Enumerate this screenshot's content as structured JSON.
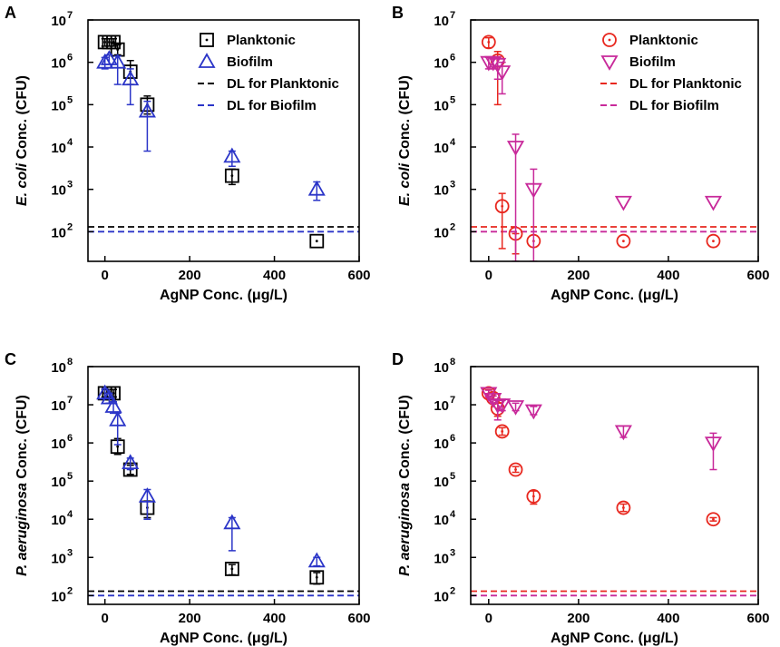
{
  "chart_data": [
    {
      "panel": "A",
      "type": "scatter",
      "xlabel": "AgNP Conc. (μg/L)",
      "ylabel_prefix": "E. coli",
      "ylabel_suffix": " Conc. (CFU)",
      "xlim": [
        -40,
        600
      ],
      "ylog_range": [
        1.3,
        7
      ],
      "yscale": "log",
      "xticks": [
        "0",
        "200",
        "400",
        "600"
      ],
      "legend_position": "top-right",
      "series": [
        {
          "name": "Planktonic",
          "marker": "square",
          "color": "#000000",
          "points": [
            {
              "x": 0,
              "y": 3000000,
              "lo": 2400000,
              "hi": 3600000
            },
            {
              "x": 10,
              "y": 3000000,
              "lo": 2400000,
              "hi": 3600000
            },
            {
              "x": 20,
              "y": 3000000,
              "lo": 2400000,
              "hi": 3600000
            },
            {
              "x": 30,
              "y": 2000000,
              "lo": 1500000,
              "hi": 2600000
            },
            {
              "x": 60,
              "y": 600000,
              "lo": 300000,
              "hi": 1100000
            },
            {
              "x": 100,
              "y": 100000,
              "lo": 60000,
              "hi": 160000
            },
            {
              "x": 300,
              "y": 2100,
              "lo": 1300,
              "hi": 3000
            },
            {
              "x": 500,
              "y": 60,
              "lo": 60,
              "hi": 60
            }
          ]
        },
        {
          "name": "Biofilm",
          "marker": "triangle-up",
          "color": "#2b35c8",
          "points": [
            {
              "x": 0,
              "y": 1000000,
              "lo": 700000,
              "hi": 1300000
            },
            {
              "x": 10,
              "y": 1200000,
              "lo": 900000,
              "hi": 1500000
            },
            {
              "x": 30,
              "y": 1000000,
              "lo": 300000,
              "hi": 1400000
            },
            {
              "x": 60,
              "y": 400000,
              "lo": 100000,
              "hi": 700000
            },
            {
              "x": 100,
              "y": 70000,
              "lo": 8000,
              "hi": 120000
            },
            {
              "x": 300,
              "y": 6000,
              "lo": 3500,
              "hi": 8000
            },
            {
              "x": 500,
              "y": 1000,
              "lo": 550,
              "hi": 1500
            }
          ]
        },
        {
          "name": "DL for Planktonic",
          "kind": "hline",
          "y": 130,
          "color": "#000000"
        },
        {
          "name": "DL for Biofilm",
          "kind": "hline",
          "y": 100,
          "color": "#2b35c8"
        }
      ]
    },
    {
      "panel": "B",
      "type": "scatter",
      "xlabel": "AgNP Conc. (μg/L)",
      "ylabel_prefix": "E. coli",
      "ylabel_suffix": " Conc. (CFU)",
      "xlim": [
        -40,
        600
      ],
      "ylog_range": [
        1.3,
        7
      ],
      "yscale": "log",
      "xticks": [
        "0",
        "200",
        "400",
        "600"
      ],
      "legend_position": "top-right",
      "series": [
        {
          "name": "Planktonic",
          "marker": "circle",
          "color": "#e8271e",
          "points": [
            {
              "x": 0,
              "y": 3000000,
              "lo": 2200000,
              "hi": 3800000
            },
            {
              "x": 20,
              "y": 1100000,
              "lo": 100000,
              "hi": 1800000
            },
            {
              "x": 30,
              "y": 400,
              "lo": 40,
              "hi": 800
            },
            {
              "x": 60,
              "y": 90,
              "lo": 30,
              "hi": 90
            },
            {
              "x": 100,
              "y": 60,
              "lo": 60,
              "hi": 60
            },
            {
              "x": 300,
              "y": 60,
              "lo": 60,
              "hi": 60
            },
            {
              "x": 500,
              "y": 60,
              "lo": 60,
              "hi": 60
            }
          ]
        },
        {
          "name": "Biofilm",
          "marker": "triangle-down",
          "color": "#c8299a",
          "points": [
            {
              "x": 0,
              "y": 1000000,
              "lo": 700000,
              "hi": 1300000
            },
            {
              "x": 10,
              "y": 1000000,
              "lo": 700000,
              "hi": 1300000
            },
            {
              "x": 20,
              "y": 900000,
              "lo": 400000,
              "hi": 1300000
            },
            {
              "x": 30,
              "y": 600000,
              "lo": 180000,
              "hi": 1000000
            },
            {
              "x": 60,
              "y": 10000,
              "lo": 20,
              "hi": 20000
            },
            {
              "x": 100,
              "y": 1000,
              "lo": 20,
              "hi": 3000
            },
            {
              "x": 300,
              "y": 500,
              "lo": 500,
              "hi": 500
            },
            {
              "x": 500,
              "y": 500,
              "lo": 500,
              "hi": 500
            }
          ]
        },
        {
          "name": "DL for Planktonic",
          "kind": "hline",
          "y": 130,
          "color": "#e8271e"
        },
        {
          "name": "DL for Biofilm",
          "kind": "hline",
          "y": 100,
          "color": "#c8299a"
        }
      ]
    },
    {
      "panel": "C",
      "type": "scatter",
      "xlabel": "AgNP Conc. (μg/L)",
      "ylabel_prefix": "P. aeruginosa",
      "ylabel_suffix": " Conc. (CFU)",
      "xlim": [
        -40,
        600
      ],
      "ylog_range": [
        1.77,
        8
      ],
      "yscale": "log",
      "xticks": [
        "0",
        "200",
        "400",
        "600"
      ],
      "series": [
        {
          "name": "Planktonic",
          "marker": "square",
          "color": "#000000",
          "points": [
            {
              "x": 0,
              "y": 20000000,
              "lo": 16000000,
              "hi": 25000000
            },
            {
              "x": 10,
              "y": 20000000,
              "lo": 16000000,
              "hi": 25000000
            },
            {
              "x": 20,
              "y": 20000000,
              "lo": 16000000,
              "hi": 25000000
            },
            {
              "x": 30,
              "y": 800000,
              "lo": 500000,
              "hi": 1300000
            },
            {
              "x": 60,
              "y": 200000,
              "lo": 150000,
              "hi": 260000
            },
            {
              "x": 100,
              "y": 20000,
              "lo": 11000,
              "hi": 30000
            },
            {
              "x": 300,
              "y": 500,
              "lo": 350,
              "hi": 650
            },
            {
              "x": 500,
              "y": 300,
              "lo": 200,
              "hi": 400
            }
          ]
        },
        {
          "name": "Biofilm",
          "marker": "triangle-up",
          "color": "#2b35c8",
          "points": [
            {
              "x": 0,
              "y": 20000000,
              "lo": 15000000,
              "hi": 26000000
            },
            {
              "x": 10,
              "y": 15000000,
              "lo": 11000000,
              "hi": 20000000
            },
            {
              "x": 20,
              "y": 9000000,
              "lo": 6000000,
              "hi": 12000000
            },
            {
              "x": 30,
              "y": 4000000,
              "lo": 900000,
              "hi": 6000000
            },
            {
              "x": 60,
              "y": 300000,
              "lo": 200000,
              "hi": 400000
            },
            {
              "x": 100,
              "y": 40000,
              "lo": 10000,
              "hi": 60000
            },
            {
              "x": 300,
              "y": 8000,
              "lo": 1500,
              "hi": 11000
            },
            {
              "x": 500,
              "y": 800,
              "lo": 600,
              "hi": 1000
            }
          ]
        },
        {
          "name": "DL for Planktonic",
          "kind": "hline",
          "y": 130,
          "color": "#000000"
        },
        {
          "name": "DL for Biofilm",
          "kind": "hline",
          "y": 100,
          "color": "#2b35c8"
        }
      ]
    },
    {
      "panel": "D",
      "type": "scatter",
      "xlabel": "AgNP Conc. (μg/L)",
      "ylabel_prefix": "P. aeruginosa",
      "ylabel_suffix": " Conc. (CFU)",
      "xlim": [
        -40,
        600
      ],
      "ylog_range": [
        1.77,
        8
      ],
      "yscale": "log",
      "xticks": [
        "0",
        "200",
        "400",
        "600"
      ],
      "series": [
        {
          "name": "Planktonic",
          "marker": "circle",
          "color": "#e8271e",
          "points": [
            {
              "x": 0,
              "y": 20000000,
              "lo": 16000000,
              "hi": 25000000
            },
            {
              "x": 10,
              "y": 15000000,
              "lo": 11000000,
              "hi": 20000000
            },
            {
              "x": 20,
              "y": 8000000,
              "lo": 5000000,
              "hi": 11000000
            },
            {
              "x": 30,
              "y": 2000000,
              "lo": 1600000,
              "hi": 2500000
            },
            {
              "x": 60,
              "y": 200000,
              "lo": 170000,
              "hi": 240000
            },
            {
              "x": 100,
              "y": 40000,
              "lo": 25000,
              "hi": 55000
            },
            {
              "x": 300,
              "y": 20000,
              "lo": 16000,
              "hi": 25000
            },
            {
              "x": 500,
              "y": 10000,
              "lo": 9000,
              "hi": 11000
            }
          ]
        },
        {
          "name": "Biofilm",
          "marker": "triangle-down",
          "color": "#c8299a",
          "points": [
            {
              "x": 0,
              "y": 20000000,
              "lo": 16000000,
              "hi": 24000000
            },
            {
              "x": 10,
              "y": 14000000,
              "lo": 11000000,
              "hi": 17000000
            },
            {
              "x": 20,
              "y": 10000000,
              "lo": 4000000,
              "hi": 13000000
            },
            {
              "x": 30,
              "y": 10000000,
              "lo": 7000000,
              "hi": 13000000
            },
            {
              "x": 60,
              "y": 9000000,
              "lo": 7000000,
              "hi": 11000000
            },
            {
              "x": 100,
              "y": 7000000,
              "lo": 5500000,
              "hi": 9000000
            },
            {
              "x": 300,
              "y": 2000000,
              "lo": 1400000,
              "hi": 2800000
            },
            {
              "x": 500,
              "y": 1000000,
              "lo": 200000,
              "hi": 1800000
            }
          ]
        },
        {
          "name": "DL for Planktonic",
          "kind": "hline",
          "y": 130,
          "color": "#e8271e"
        },
        {
          "name": "DL for Biofilm",
          "kind": "hline",
          "y": 100,
          "color": "#c8299a"
        }
      ]
    }
  ]
}
